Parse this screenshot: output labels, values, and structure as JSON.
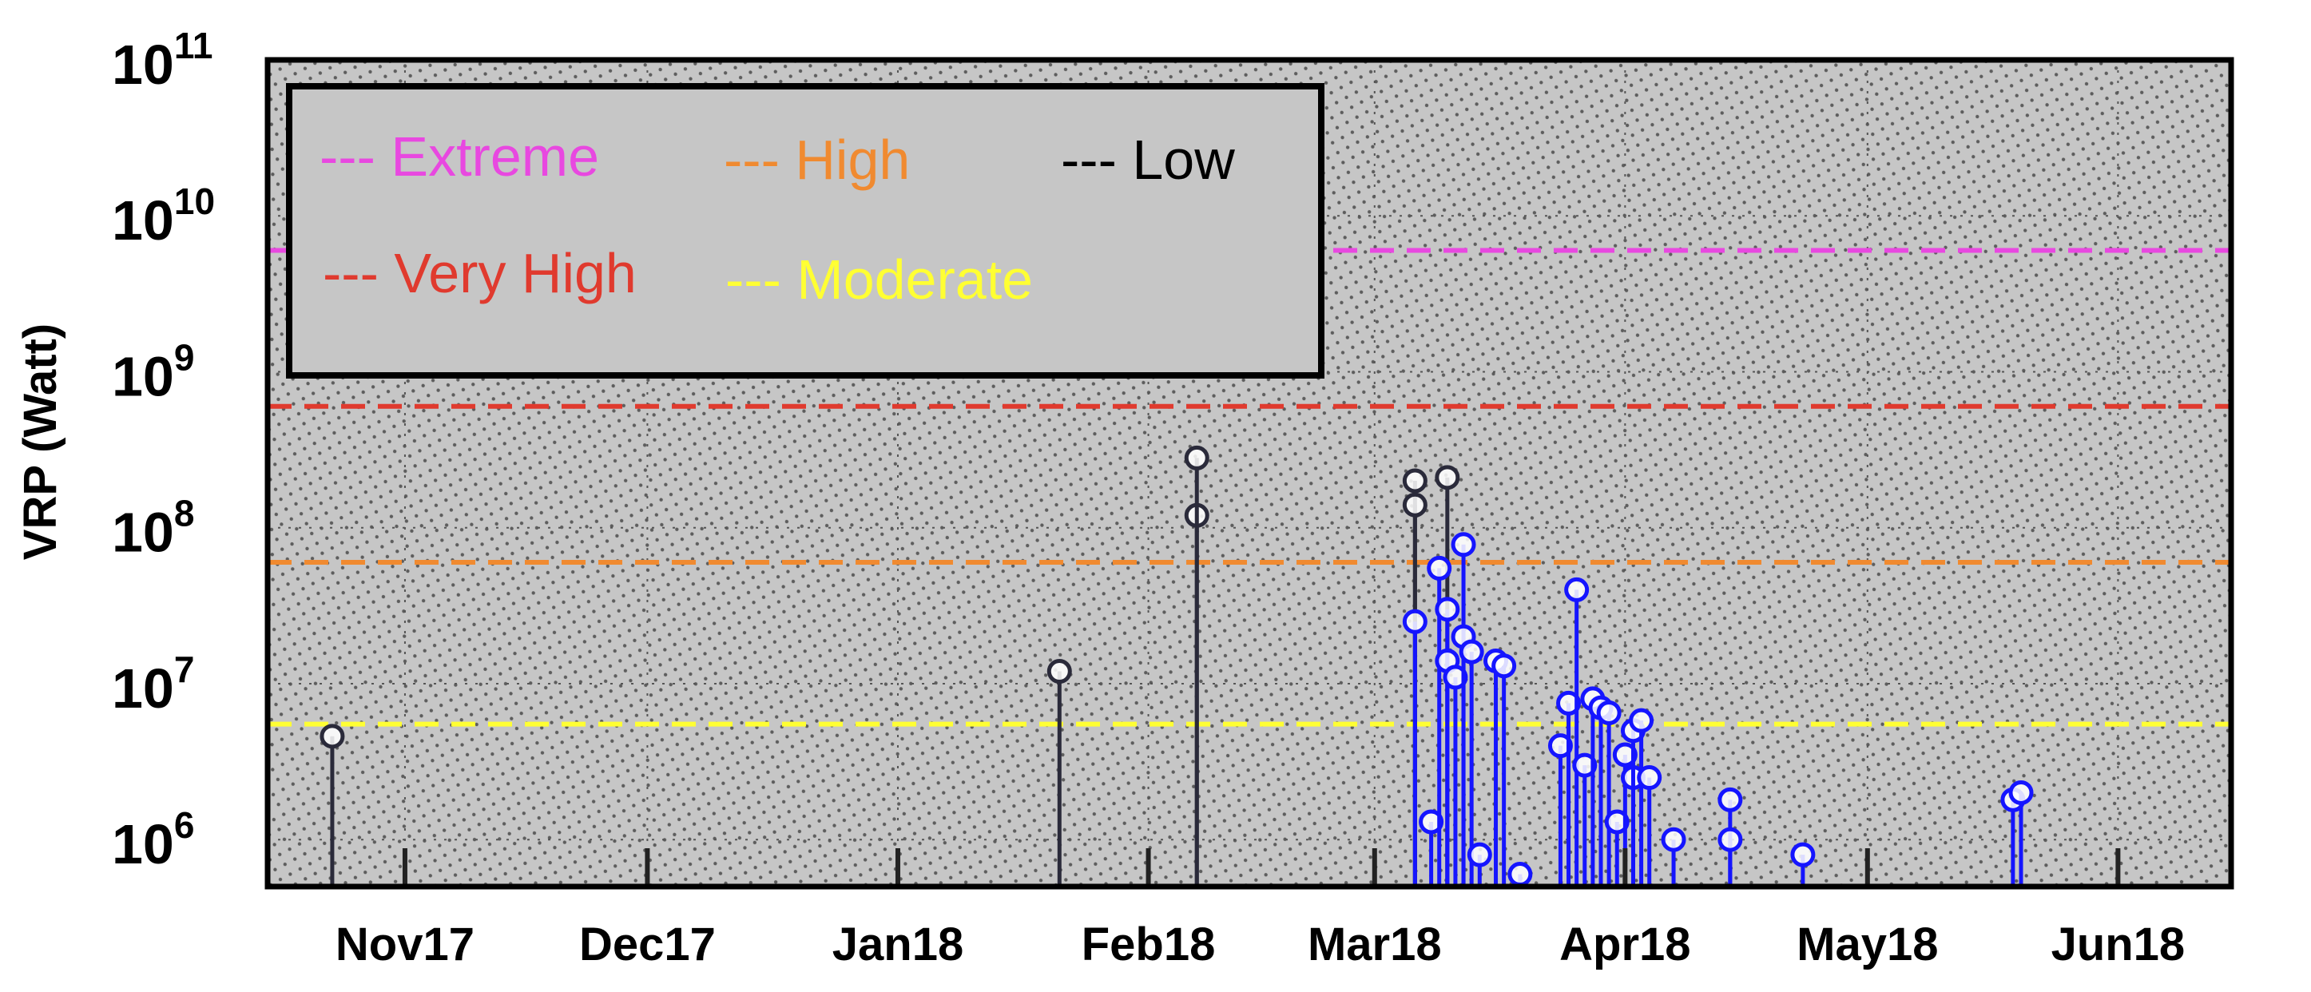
{
  "chart_data": {
    "type": "scatter",
    "title": "",
    "ylabel": "VRP (Watt)",
    "xlabel": "",
    "yscale": "log",
    "ylim": [
      500000,
      100000000000
    ],
    "xlim": [
      "2017-10-15",
      "2018-06-15"
    ],
    "grid": true,
    "legend_position": "top-left",
    "y_tick_labels": [
      {
        "base": "10",
        "exp": "6",
        "value": 1000000
      },
      {
        "base": "10",
        "exp": "7",
        "value": 10000000
      },
      {
        "base": "10",
        "exp": "8",
        "value": 100000000
      },
      {
        "base": "10",
        "exp": "9",
        "value": 1000000000
      },
      {
        "base": "10",
        "exp": "10",
        "value": 10000000000
      },
      {
        "base": "10",
        "exp": "11",
        "value": 100000000000
      }
    ],
    "x_tick_labels": [
      {
        "label": "Nov17",
        "date": "2017-11-01"
      },
      {
        "label": "Dec17",
        "date": "2017-12-01"
      },
      {
        "label": "Jan18",
        "date": "2018-01-01"
      },
      {
        "label": "Feb18",
        "date": "2018-02-01"
      },
      {
        "label": "Mar18",
        "date": "2018-03-01"
      },
      {
        "label": "Apr18",
        "date": "2018-04-01"
      },
      {
        "label": "May18",
        "date": "2018-05-01"
      },
      {
        "label": "Jun18",
        "date": "2018-06-01"
      }
    ],
    "thresholds": [
      {
        "name": "Extreme",
        "label": "--- Extreme",
        "value": 6000000000,
        "color": "#e848e0"
      },
      {
        "name": "Very High",
        "label": "--- Very High",
        "value": 600000000,
        "color": "#e03a2e"
      },
      {
        "name": "High",
        "label": "--- High",
        "value": 60000000,
        "color": "#f08a30"
      },
      {
        "name": "Moderate",
        "label": "--- Moderate",
        "value": 5500000,
        "color": "#ffff33"
      },
      {
        "name": "Low",
        "label": "--- Low",
        "value": null,
        "color": "#000000"
      }
    ],
    "series": [
      {
        "color": "#2a2a3a",
        "points": [
          {
            "x": "2017-10-23",
            "y": 4600000
          },
          {
            "x": "2018-01-21",
            "y": 12000000
          },
          {
            "x": "2018-02-07",
            "y": 120000000
          },
          {
            "x": "2018-02-07",
            "y": 280000000
          },
          {
            "x": "2018-03-06",
            "y": 200000000
          },
          {
            "x": "2018-03-06",
            "y": 140000000
          },
          {
            "x": "2018-03-10",
            "y": 210000000
          }
        ]
      },
      {
        "color": "#1515ff",
        "points": [
          {
            "x": "2018-03-06",
            "y": 25000000
          },
          {
            "x": "2018-03-08",
            "y": 1300000
          },
          {
            "x": "2018-03-09",
            "y": 55000000
          },
          {
            "x": "2018-03-10",
            "y": 30000000
          },
          {
            "x": "2018-03-10",
            "y": 14000000
          },
          {
            "x": "2018-03-11",
            "y": 11000000
          },
          {
            "x": "2018-03-12",
            "y": 78000000
          },
          {
            "x": "2018-03-12",
            "y": 20000000
          },
          {
            "x": "2018-03-13",
            "y": 16000000
          },
          {
            "x": "2018-03-14",
            "y": 800000
          },
          {
            "x": "2018-03-16",
            "y": 14000000
          },
          {
            "x": "2018-03-17",
            "y": 13000000
          },
          {
            "x": "2018-03-19",
            "y": 600000
          },
          {
            "x": "2018-03-24",
            "y": 4000000
          },
          {
            "x": "2018-03-25",
            "y": 7500000
          },
          {
            "x": "2018-03-26",
            "y": 40000000
          },
          {
            "x": "2018-03-27",
            "y": 3000000
          },
          {
            "x": "2018-03-28",
            "y": 8000000
          },
          {
            "x": "2018-03-29",
            "y": 7000000
          },
          {
            "x": "2018-03-30",
            "y": 6500000
          },
          {
            "x": "2018-03-31",
            "y": 1300000
          },
          {
            "x": "2018-04-01",
            "y": 3500000
          },
          {
            "x": "2018-04-02",
            "y": 2500000
          },
          {
            "x": "2018-04-02",
            "y": 5000000
          },
          {
            "x": "2018-04-03",
            "y": 5800000
          },
          {
            "x": "2018-04-04",
            "y": 2500000
          },
          {
            "x": "2018-04-07",
            "y": 1000000
          },
          {
            "x": "2018-04-14",
            "y": 1800000
          },
          {
            "x": "2018-04-14",
            "y": 1000000
          },
          {
            "x": "2018-04-23",
            "y": 800000
          },
          {
            "x": "2018-05-19",
            "y": 1800000
          },
          {
            "x": "2018-05-20",
            "y": 2000000
          }
        ]
      }
    ]
  }
}
